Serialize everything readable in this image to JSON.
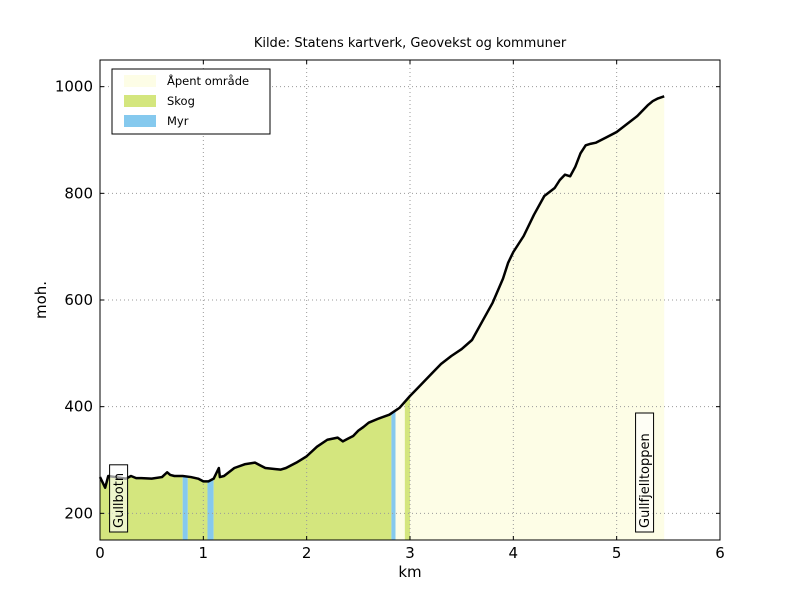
{
  "chart_data": {
    "type": "area",
    "title": "Kilde: Statens kartverk, Geovekst og kommuner",
    "xlabel": "km",
    "ylabel": "moh.",
    "xlim": [
      0,
      6
    ],
    "ylim": [
      150,
      1050
    ],
    "xticks": [
      "0",
      "1",
      "2",
      "3",
      "4",
      "5",
      "6"
    ],
    "yticks": [
      "200",
      "400",
      "600",
      "800",
      "1000"
    ],
    "grid": true,
    "legend_position": "top-left",
    "legend": [
      {
        "label": "Åpent område",
        "color": "#fdfde6"
      },
      {
        "label": "Skog",
        "color": "#d4e67e"
      },
      {
        "label": "Myr",
        "color": "#85c9ee"
      }
    ],
    "land_cover": [
      {
        "type": "Skog",
        "color": "#d4e67e",
        "from_km": 0.0,
        "to_km": 0.8
      },
      {
        "type": "Myr",
        "color": "#85c9ee",
        "from_km": 0.8,
        "to_km": 0.85
      },
      {
        "type": "Skog",
        "color": "#d4e67e",
        "from_km": 0.85,
        "to_km": 1.04
      },
      {
        "type": "Myr",
        "color": "#85c9ee",
        "from_km": 1.04,
        "to_km": 1.1
      },
      {
        "type": "Skog",
        "color": "#d4e67e",
        "from_km": 1.1,
        "to_km": 2.82
      },
      {
        "type": "Myr",
        "color": "#85c9ee",
        "from_km": 2.82,
        "to_km": 2.86
      },
      {
        "type": "Åpent område",
        "color": "#fdfde6",
        "from_km": 2.86,
        "to_km": 2.95
      },
      {
        "type": "Skog",
        "color": "#d4e67e",
        "from_km": 2.95,
        "to_km": 3.0
      },
      {
        "type": "Åpent område",
        "color": "#fdfde6",
        "from_km": 3.0,
        "to_km": 5.46
      }
    ],
    "series": [
      {
        "x": [
          0.0,
          0.05,
          0.08,
          0.15,
          0.25,
          0.3,
          0.35,
          0.4,
          0.5,
          0.6,
          0.65,
          0.68,
          0.72,
          0.8,
          0.88,
          0.95,
          1.0,
          1.05,
          1.1,
          1.15,
          1.16,
          1.2,
          1.3,
          1.4,
          1.5,
          1.55,
          1.6,
          1.7,
          1.75,
          1.8,
          1.9,
          2.0,
          2.1,
          2.2,
          2.3,
          2.35,
          2.4,
          2.45,
          2.5,
          2.55,
          2.6,
          2.7,
          2.8,
          2.9,
          3.0,
          3.1,
          3.2,
          3.3,
          3.4,
          3.5,
          3.6,
          3.7,
          3.8,
          3.9,
          3.95,
          4.0,
          4.05,
          4.1,
          4.2,
          4.3,
          4.4,
          4.45,
          4.5,
          4.55,
          4.6,
          4.65,
          4.7,
          4.75,
          4.8,
          4.9,
          5.0,
          5.1,
          5.2,
          5.3,
          5.35,
          5.4,
          5.46
        ],
        "y": [
          268,
          248,
          270,
          268,
          265,
          270,
          266,
          266,
          265,
          268,
          277,
          272,
          270,
          270,
          268,
          265,
          260,
          260,
          265,
          285,
          268,
          270,
          285,
          292,
          295,
          290,
          285,
          283,
          282,
          285,
          295,
          307,
          325,
          338,
          342,
          335,
          340,
          345,
          355,
          362,
          370,
          378,
          385,
          398,
          420,
          440,
          460,
          480,
          495,
          508,
          525,
          560,
          595,
          640,
          670,
          690,
          705,
          720,
          760,
          795,
          810,
          825,
          835,
          832,
          850,
          875,
          890,
          893,
          895,
          905,
          915,
          930,
          945,
          965,
          973,
          978,
          982
        ]
      }
    ],
    "annotations": [
      {
        "text": "Gullbotn",
        "x": 0.18,
        "orientation": "vertical"
      },
      {
        "text": "Gullfjelltoppen",
        "x": 5.27,
        "orientation": "vertical"
      }
    ]
  }
}
